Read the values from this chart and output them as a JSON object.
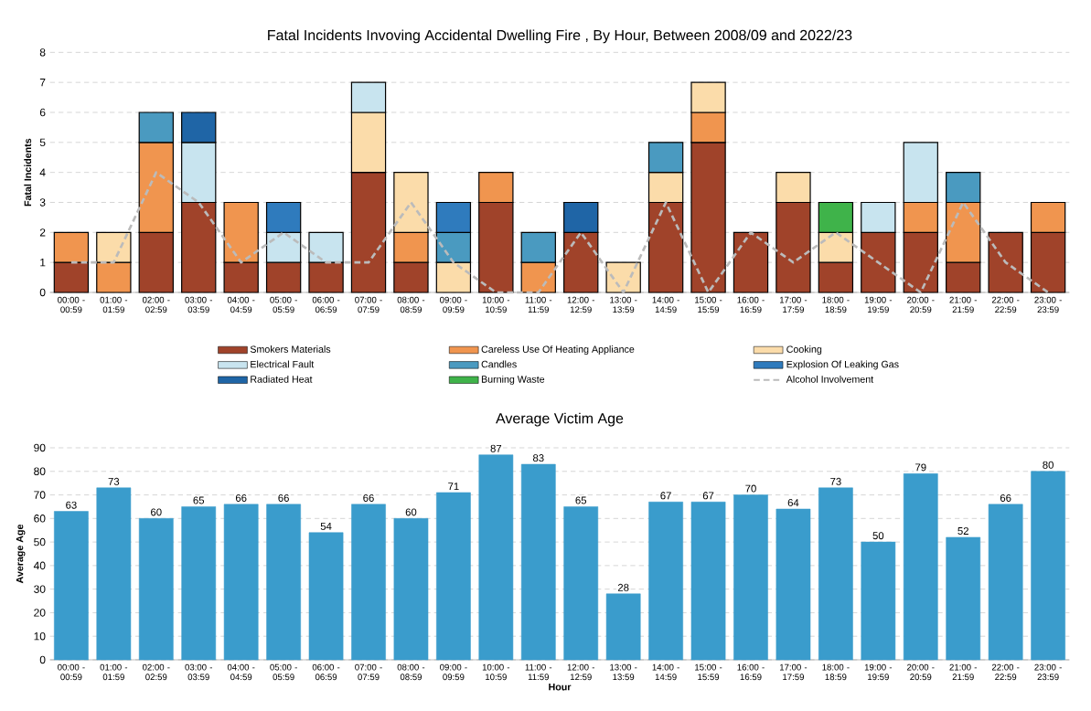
{
  "chart_data": [
    {
      "type": "bar",
      "stacked": true,
      "title": "Fatal Incidents Invoving Accidental Dwelling Fire , By Hour, Between 2008/09 and 2022/23",
      "ylabel": "Fatal Incidents",
      "categories": [
        "00:00 - 00:59",
        "01:00 - 01:59",
        "02:00 - 02:59",
        "03:00 - 03:59",
        "04:00 - 04:59",
        "05:00 - 05:59",
        "06:00 - 06:59",
        "07:00 - 07:59",
        "08:00 - 08:59",
        "09:00 - 09:59",
        "10:00 - 10:59",
        "11:00 - 11:59",
        "12:00 - 12:59",
        "13:00 - 13:59",
        "14:00 - 14:59",
        "15:00 - 15:59",
        "16:00 - 16:59",
        "17:00 - 17:59",
        "18:00 - 18:59",
        "19:00 - 19:59",
        "20:00 - 20:59",
        "21:00 - 21:59",
        "22:00 - 22:59",
        "23:00 - 23:59"
      ],
      "series": [
        {
          "name": "Smokers Materials",
          "color": "#a0432a",
          "values": [
            1,
            0,
            2,
            3,
            1,
            1,
            1,
            4,
            1,
            0,
            3,
            0,
            2,
            0,
            3,
            5,
            2,
            3,
            1,
            2,
            2,
            1,
            2,
            2
          ]
        },
        {
          "name": "Careless Use Of Heating Appliance",
          "color": "#f0954f",
          "values": [
            1,
            1,
            3,
            0,
            2,
            0,
            0,
            0,
            1,
            0,
            1,
            1,
            0,
            0,
            0,
            1,
            0,
            0,
            0,
            0,
            1,
            2,
            0,
            1
          ]
        },
        {
          "name": "Cooking",
          "color": "#fbdcaa",
          "values": [
            0,
            1,
            0,
            0,
            0,
            0,
            0,
            2,
            2,
            1,
            0,
            0,
            0,
            1,
            1,
            1,
            0,
            1,
            1,
            0,
            0,
            0,
            0,
            0
          ]
        },
        {
          "name": "Electrical Fault",
          "color": "#c8e4ef",
          "values": [
            0,
            0,
            0,
            2,
            0,
            1,
            1,
            1,
            0,
            0,
            0,
            0,
            0,
            0,
            0,
            0,
            0,
            0,
            0,
            1,
            2,
            0,
            0,
            0
          ]
        },
        {
          "name": "Candles",
          "color": "#4a9ac0",
          "values": [
            0,
            0,
            1,
            0,
            0,
            0,
            0,
            0,
            0,
            1,
            0,
            1,
            0,
            0,
            1,
            0,
            0,
            0,
            0,
            0,
            0,
            1,
            0,
            0
          ]
        },
        {
          "name": "Explosion Of Leaking Gas",
          "color": "#2f7bbd",
          "values": [
            0,
            0,
            0,
            0,
            0,
            1,
            0,
            0,
            0,
            1,
            0,
            0,
            0,
            0,
            0,
            0,
            0,
            0,
            0,
            0,
            0,
            0,
            0,
            0
          ]
        },
        {
          "name": "Radiated Heat",
          "color": "#1f65a6",
          "values": [
            0,
            0,
            0,
            1,
            0,
            0,
            0,
            0,
            0,
            0,
            0,
            0,
            1,
            0,
            0,
            0,
            0,
            0,
            0,
            0,
            0,
            0,
            0,
            0
          ]
        },
        {
          "name": "Burning Waste",
          "color": "#3fb34a",
          "values": [
            0,
            0,
            0,
            0,
            0,
            0,
            0,
            0,
            0,
            0,
            0,
            0,
            0,
            0,
            0,
            0,
            0,
            0,
            1,
            0,
            0,
            0,
            0,
            0
          ]
        },
        {
          "name": "Alcohol Involvement",
          "type": "line",
          "line_style": "dashed",
          "color": "#bbbbbb",
          "values": [
            1,
            1,
            4,
            3,
            1,
            2,
            1,
            1,
            3,
            1,
            0,
            0,
            2,
            0,
            3,
            0,
            2,
            1,
            2,
            1,
            0,
            3,
            1,
            0
          ]
        }
      ],
      "ylim": [
        0,
        8
      ],
      "yticks": [
        0,
        1,
        2,
        3,
        4,
        5,
        6,
        7,
        8
      ],
      "grid": "y",
      "legend": "bottom"
    },
    {
      "type": "bar",
      "title": "Average Victim Age",
      "xlabel": "Hour",
      "ylabel": "Average Age",
      "categories": [
        "00:00 - 00:59",
        "01:00 - 01:59",
        "02:00 - 02:59",
        "03:00 - 03:59",
        "04:00 - 04:59",
        "05:00 - 05:59",
        "06:00 - 06:59",
        "07:00 - 07:59",
        "08:00 - 08:59",
        "09:00 - 09:59",
        "10:00 - 10:59",
        "11:00 - 11:59",
        "12:00 - 12:59",
        "13:00 - 13:59",
        "14:00 - 14:59",
        "15:00 - 15:59",
        "16:00 - 16:59",
        "17:00 - 17:59",
        "18:00 - 18:59",
        "19:00 - 19:59",
        "20:00 - 20:59",
        "21:00 - 21:59",
        "22:00 - 22:59",
        "23:00 - 23:59"
      ],
      "values": [
        63,
        73,
        60,
        65,
        66,
        66,
        54,
        66,
        60,
        71,
        87,
        83,
        65,
        28,
        67,
        67,
        70,
        64,
        73,
        50,
        79,
        52,
        66,
        80
      ],
      "color": "#3a9ccc",
      "ylim": [
        0,
        90
      ],
      "yticks": [
        0,
        10,
        20,
        30,
        40,
        50,
        60,
        70,
        80,
        90
      ],
      "grid": "y",
      "data_labels": true
    }
  ]
}
